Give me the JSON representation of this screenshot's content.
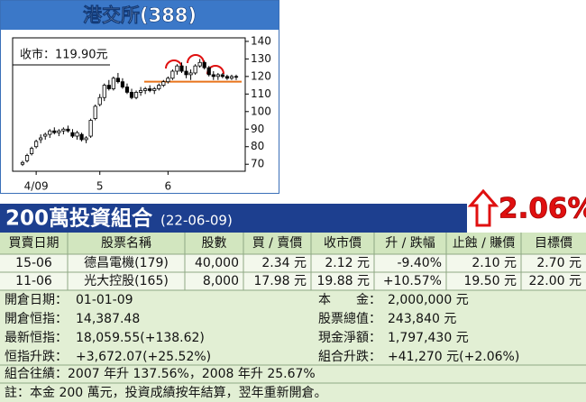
{
  "chart_data": {
    "type": "candlestick",
    "title": "港交所(388)",
    "annotation": "收市：119.90元",
    "categories": [
      null,
      null,
      null,
      "4/09",
      null,
      null,
      null,
      null,
      null,
      null,
      null,
      null,
      null,
      null,
      null,
      null,
      null,
      "5",
      null,
      null,
      null,
      null,
      null,
      null,
      null,
      null,
      null,
      null,
      null,
      null,
      null,
      null,
      "6",
      null,
      null,
      null,
      null,
      null,
      null,
      null,
      null,
      null,
      null,
      null,
      null,
      null,
      null,
      null
    ],
    "open": [
      70,
      72,
      76,
      80,
      84,
      86,
      87,
      89,
      88,
      89,
      90,
      88,
      86,
      87,
      84,
      86,
      96,
      104,
      108,
      115,
      113,
      119,
      117,
      114,
      111,
      108,
      111,
      112,
      113,
      112,
      113,
      115,
      117,
      119,
      123,
      126,
      123,
      121,
      122,
      126,
      128,
      125,
      121,
      120,
      121,
      120,
      119,
      120
    ],
    "high": [
      72,
      76,
      80,
      84,
      87,
      88,
      90,
      91,
      90,
      91,
      92,
      90,
      89,
      88,
      86,
      96,
      104,
      110,
      116,
      118,
      120,
      122,
      119,
      116,
      113,
      112,
      114,
      114,
      115,
      114,
      116,
      118,
      120,
      124,
      127,
      128,
      126,
      124,
      127,
      130,
      129,
      126,
      123,
      122,
      122,
      121,
      121,
      121
    ],
    "low": [
      69,
      71,
      75,
      79,
      82,
      84,
      85,
      87,
      86,
      87,
      88,
      85,
      84,
      83,
      82,
      85,
      95,
      103,
      106,
      112,
      112,
      116,
      113,
      110,
      107,
      107,
      109,
      110,
      111,
      110,
      112,
      114,
      116,
      118,
      121,
      122,
      119,
      118,
      121,
      125,
      124,
      120,
      118,
      118,
      119,
      118,
      118,
      118
    ],
    "close": [
      71,
      75,
      79,
      83,
      85,
      87,
      89,
      88,
      89,
      90,
      89,
      86,
      88,
      84,
      85,
      95,
      103,
      108,
      115,
      113,
      119,
      117,
      114,
      111,
      108,
      111,
      112,
      113,
      112,
      113,
      115,
      117,
      119,
      123,
      126,
      123,
      121,
      122,
      126,
      128,
      125,
      121,
      120,
      121,
      120,
      119,
      120,
      119.9
    ],
    "up_color": "#ffffff",
    "down_color": "#000000",
    "hline": {
      "value": 117,
      "color": "#e8731a"
    },
    "ylim": [
      66,
      142
    ],
    "yticks": [
      70,
      80,
      90,
      100,
      110,
      120,
      130,
      140
    ],
    "grid": false
  },
  "portfolio": {
    "title": "200萬投資組合",
    "date": "(22-06-09)",
    "change": "2.06%",
    "table": {
      "header": [
        "買賣日期",
        "股票名稱",
        "股數",
        "買 / 賣價",
        "收市價",
        "升 / 跌幅",
        "止蝕 / 賺價",
        "目標價"
      ],
      "rows": [
        [
          "15-06",
          "德昌電機(179)",
          "40,000",
          "2.34 元",
          "2.12 元",
          "-9.40%",
          "2.10 元",
          "2.70 元"
        ],
        [
          "11-06",
          "光大控股(165)",
          "8,000",
          "17.98 元",
          "19.88 元",
          "+10.57%",
          "19.50 元",
          "22.00 元"
        ]
      ]
    },
    "summary_left": [
      [
        "開倉日期：",
        "01-01-09"
      ],
      [
        "開倉恒指：",
        "14,387.48"
      ],
      [
        "最新恒指：",
        "18,059.55(+138.62)"
      ],
      [
        "恒指升跌：",
        "+3,672.07(+25.52%)"
      ]
    ],
    "summary_right": [
      [
        "本　　金：",
        "2,000,000 元"
      ],
      [
        "股票總值：",
        "243,840 元"
      ],
      [
        "現金淨額：",
        "1,797,430 元"
      ],
      [
        "組合升跌：",
        "+41,270 元(+2.06%)"
      ]
    ],
    "record": "組合往績：2007 年升 137.56%，2008 年升 25.67%",
    "note": "註：本金 200 萬元，投資成績按年結算，翌年重新開倉。"
  }
}
